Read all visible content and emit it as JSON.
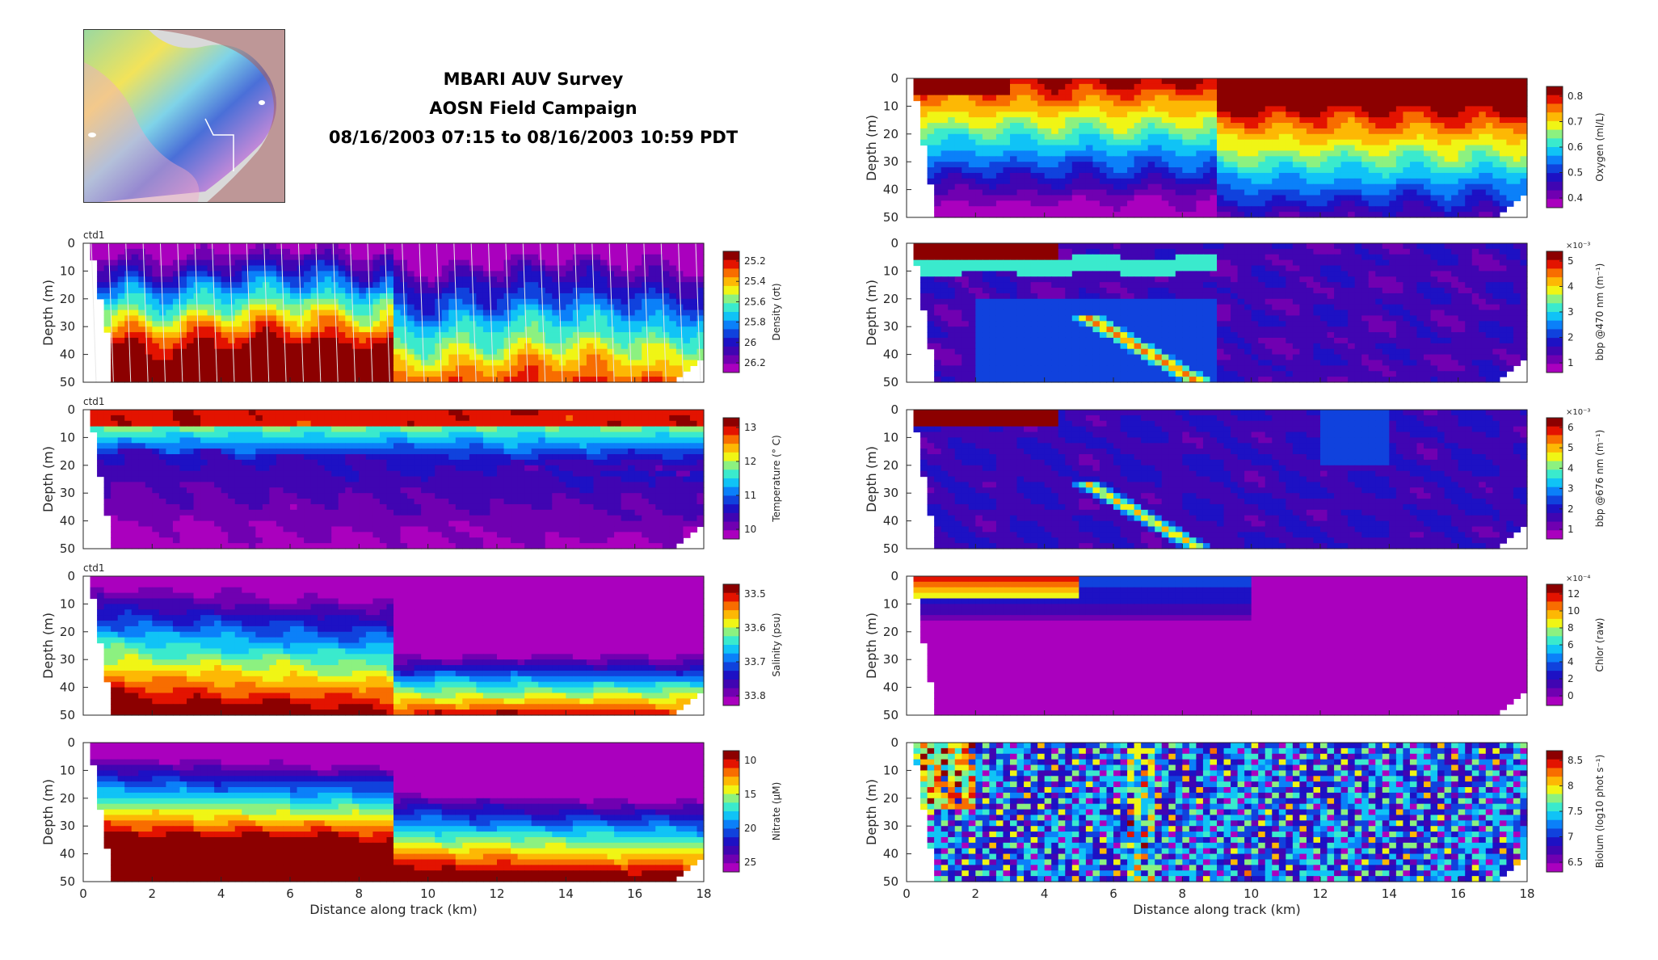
{
  "header": {
    "title_line1": "MBARI AUV Survey",
    "title_line2": "AOSN Field Campaign",
    "title_line3": "08/16/2003 07:15 to 08/16/2003 10:59 PDT"
  },
  "chart_data": [
    {
      "type": "heatmap",
      "tag": "ctd1",
      "ylabel": "Depth (m)",
      "colorbar_label": "Density (σt)",
      "xlim": [
        0,
        18
      ],
      "ylim": [
        50,
        0
      ],
      "y_ticks": [
        0,
        10,
        20,
        30,
        40,
        50
      ],
      "x_ticks": [
        0,
        2,
        4,
        6,
        8,
        10,
        12,
        14,
        16,
        18
      ],
      "cbar_ticks": [
        "25.2",
        "25.4",
        "25.6",
        "25.8",
        "26",
        "26.2"
      ],
      "colormap": "parula-like"
    },
    {
      "type": "heatmap",
      "tag": "ctd1",
      "ylabel": "Depth (m)",
      "colorbar_label": "Temperature (° C)",
      "xlim": [
        0,
        18
      ],
      "ylim": [
        50,
        0
      ],
      "y_ticks": [
        0,
        10,
        20,
        30,
        40,
        50
      ],
      "x_ticks": [
        0,
        2,
        4,
        6,
        8,
        10,
        12,
        14,
        16,
        18
      ],
      "cbar_ticks": [
        "13",
        "12",
        "11",
        "10"
      ]
    },
    {
      "type": "heatmap",
      "tag": "ctd1",
      "ylabel": "Depth (m)",
      "colorbar_label": "Salinity (psu)",
      "xlim": [
        0,
        18
      ],
      "ylim": [
        50,
        0
      ],
      "y_ticks": [
        0,
        10,
        20,
        30,
        40,
        50
      ],
      "x_ticks": [
        0,
        2,
        4,
        6,
        8,
        10,
        12,
        14,
        16,
        18
      ],
      "cbar_ticks": [
        "33.5",
        "33.6",
        "33.7",
        "33.8"
      ]
    },
    {
      "type": "heatmap",
      "tag": "",
      "ylabel": "Depth (m)",
      "colorbar_label": "Nitrate (μM)",
      "xlabel": "Distance along track (km)",
      "xlim": [
        0,
        18
      ],
      "ylim": [
        50,
        0
      ],
      "y_ticks": [
        0,
        10,
        20,
        30,
        40,
        50
      ],
      "x_ticks": [
        0,
        2,
        4,
        6,
        8,
        10,
        12,
        14,
        16,
        18
      ],
      "cbar_ticks": [
        "10",
        "15",
        "20",
        "25"
      ]
    },
    {
      "type": "heatmap",
      "tag": "",
      "ylabel": "Depth (m)",
      "colorbar_label": "Oxygen (ml/L)",
      "xlim": [
        0,
        18
      ],
      "ylim": [
        50,
        0
      ],
      "y_ticks": [
        0,
        10,
        20,
        30,
        40,
        50
      ],
      "x_ticks": [
        0,
        2,
        4,
        6,
        8,
        10,
        12,
        14,
        16,
        18
      ],
      "cbar_ticks": [
        "0.8",
        "0.7",
        "0.6",
        "0.5",
        "0.4"
      ]
    },
    {
      "type": "heatmap",
      "tag": "",
      "ylabel": "Depth (m)",
      "colorbar_label": "bbp @470 nm (m⁻¹)",
      "cbar_exponent": "×10⁻³",
      "xlim": [
        0,
        18
      ],
      "ylim": [
        50,
        0
      ],
      "y_ticks": [
        0,
        10,
        20,
        30,
        40,
        50
      ],
      "x_ticks": [
        0,
        2,
        4,
        6,
        8,
        10,
        12,
        14,
        16,
        18
      ],
      "cbar_ticks": [
        "5",
        "4",
        "3",
        "2",
        "1"
      ]
    },
    {
      "type": "heatmap",
      "tag": "",
      "ylabel": "Depth (m)",
      "colorbar_label": "bbp @676 nm (m⁻¹)",
      "cbar_exponent": "×10⁻³",
      "xlim": [
        0,
        18
      ],
      "ylim": [
        50,
        0
      ],
      "y_ticks": [
        0,
        10,
        20,
        30,
        40,
        50
      ],
      "x_ticks": [
        0,
        2,
        4,
        6,
        8,
        10,
        12,
        14,
        16,
        18
      ],
      "cbar_ticks": [
        "6",
        "5",
        "4",
        "3",
        "2",
        "1"
      ]
    },
    {
      "type": "heatmap",
      "tag": "",
      "ylabel": "Depth (m)",
      "colorbar_label": "Chlor (raw)",
      "cbar_exponent": "×10⁻⁴",
      "xlim": [
        0,
        18
      ],
      "ylim": [
        50,
        0
      ],
      "y_ticks": [
        0,
        10,
        20,
        30,
        40,
        50
      ],
      "x_ticks": [
        0,
        2,
        4,
        6,
        8,
        10,
        12,
        14,
        16,
        18
      ],
      "cbar_ticks": [
        "12",
        "10",
        "8",
        "6",
        "4",
        "2",
        "0"
      ]
    },
    {
      "type": "heatmap",
      "tag": "",
      "ylabel": "Depth (m)",
      "colorbar_label": "Biolum (log10 phot s⁻¹)",
      "xlabel": "Distance along track (km)",
      "xlim": [
        0,
        18
      ],
      "ylim": [
        50,
        0
      ],
      "y_ticks": [
        0,
        10,
        20,
        30,
        40,
        50
      ],
      "x_ticks": [
        0,
        2,
        4,
        6,
        8,
        10,
        12,
        14,
        16,
        18
      ],
      "cbar_ticks": [
        "8.5",
        "8",
        "7.5",
        "7",
        "6.5"
      ]
    }
  ]
}
